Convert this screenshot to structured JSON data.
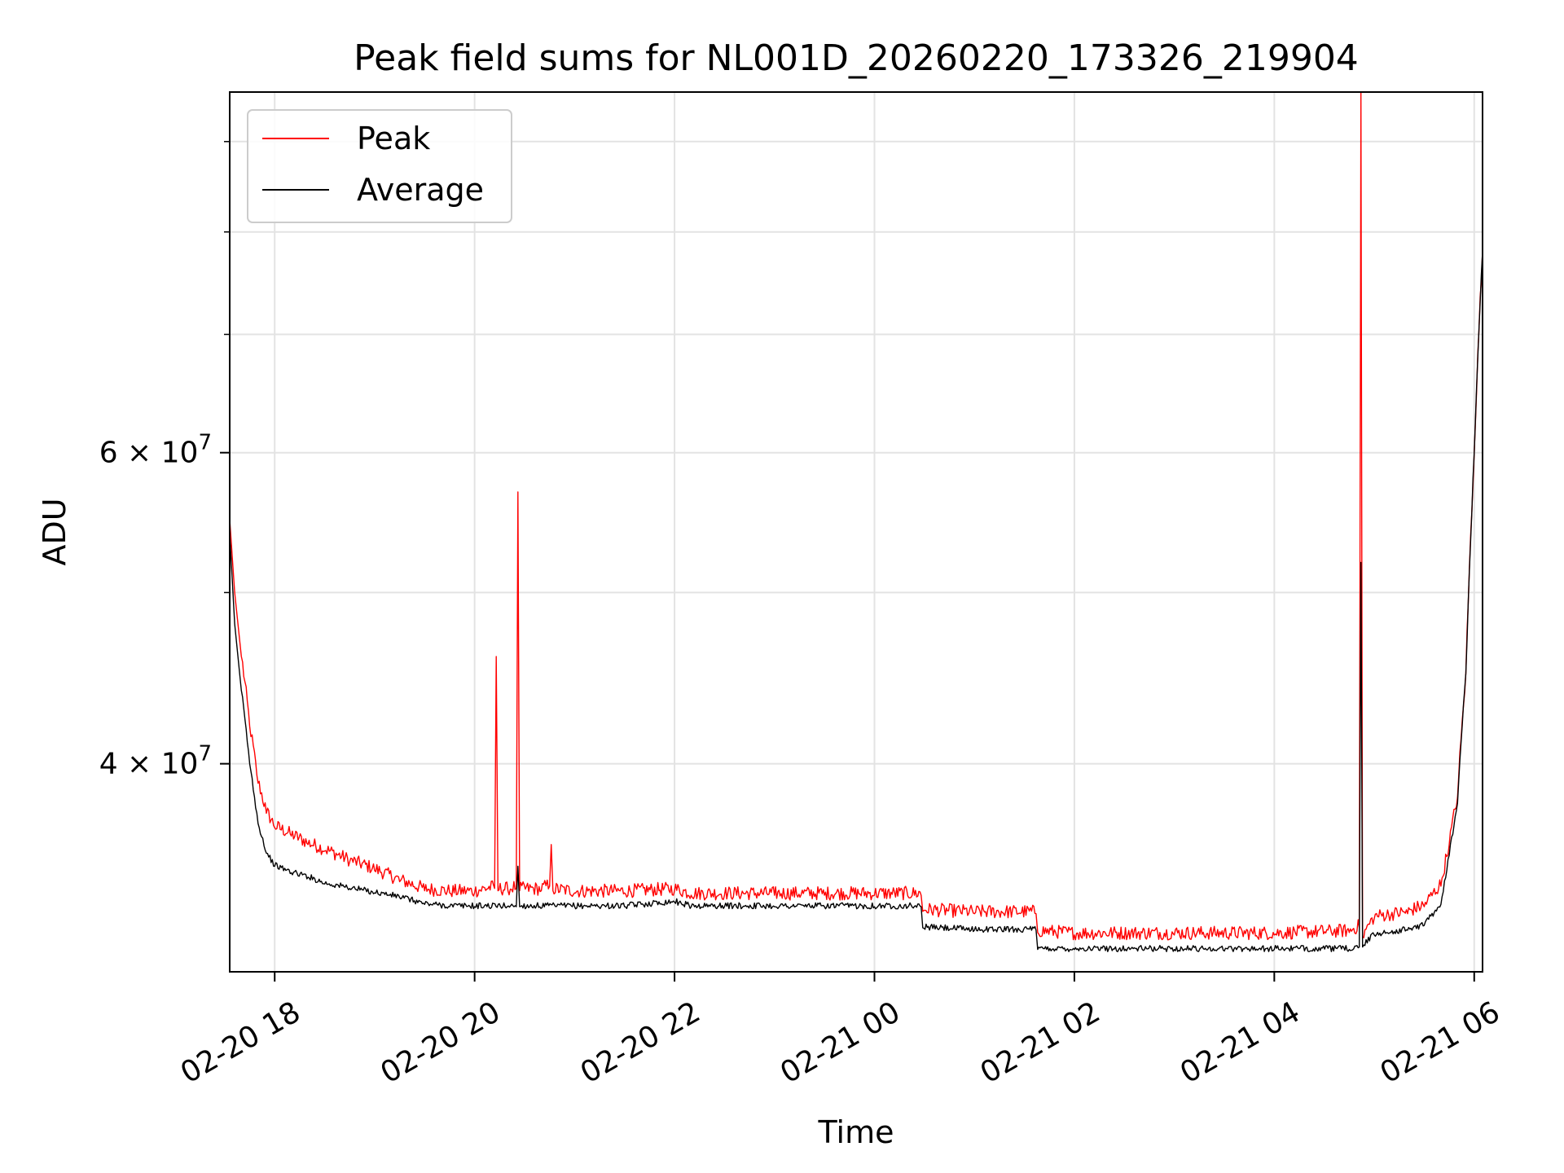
{
  "chart_data": {
    "type": "line",
    "title": "Peak field sums for NL001D_20260220_173326_219904",
    "xlabel": "Time",
    "ylabel": "ADU",
    "y_scale": "log",
    "ylim": [
      30500000,
      96000000
    ],
    "xlim": [
      "02-20 17:33",
      "02-21 06:05"
    ],
    "grid": true,
    "legend_position": "top-left",
    "x_ticks": [
      "02-20 18",
      "02-20 20",
      "02-20 22",
      "02-21 00",
      "02-21 02",
      "02-21 04",
      "02-21 06"
    ],
    "y_major_ticks": [
      {
        "value": 40000000,
        "label": "4 × 10",
        "exp": "7"
      },
      {
        "value": 60000000,
        "label": "6 × 10",
        "exp": "7"
      }
    ],
    "y_minor_ticks": [
      30000000,
      50000000,
      70000000,
      80000000,
      90000000
    ],
    "series": [
      {
        "name": "Peak",
        "color": "#ff0000",
        "x": [
          "02-20 17:33",
          "02-20 17:36",
          "02-20 17:40",
          "02-20 17:45",
          "02-20 17:50",
          "02-20 17:55",
          "02-20 18:00",
          "02-20 18:10",
          "02-20 18:20",
          "02-20 18:30",
          "02-20 18:45",
          "02-20 19:00",
          "02-20 19:15",
          "02-20 19:30",
          "02-20 19:45",
          "02-20 20:00",
          "02-20 20:12",
          "02-20 20:13",
          "02-20 20:14",
          "02-20 20:20",
          "02-20 20:25",
          "02-20 20:26",
          "02-20 20:27",
          "02-20 20:40",
          "02-20 20:45",
          "02-20 20:46",
          "02-20 20:47",
          "02-20 21:00",
          "02-20 21:30",
          "02-20 22:00",
          "02-20 22:10",
          "02-20 22:30",
          "02-20 23:00",
          "02-20 23:30",
          "02-21 00:00",
          "02-21 00:28",
          "02-21 00:29",
          "02-21 01:00",
          "02-21 01:37",
          "02-21 01:38",
          "02-21 02:00",
          "02-21 03:00",
          "02-21 04:00",
          "02-21 04:45",
          "02-21 04:51",
          "02-21 04:52",
          "02-21 04:53",
          "02-21 05:00",
          "02-21 05:10",
          "02-21 05:20",
          "02-21 05:30",
          "02-21 05:40",
          "02-21 05:45",
          "02-21 05:50",
          "02-21 05:55",
          "02-21 06:00",
          "02-21 06:05"
        ],
        "values": [
          55000000,
          50000000,
          46000000,
          42000000,
          39000000,
          37500000,
          36800000,
          36400000,
          36000000,
          35700000,
          35200000,
          34800000,
          34300000,
          33900000,
          33800000,
          33800000,
          34000000,
          46000000,
          33900000,
          33900000,
          34000000,
          57000000,
          33900000,
          33900000,
          34100000,
          36000000,
          33900000,
          33800000,
          33800000,
          33900000,
          33700000,
          33700000,
          33700000,
          33700000,
          33700000,
          33700000,
          33000000,
          32900000,
          32900000,
          32100000,
          32000000,
          32000000,
          32000000,
          32100000,
          32300000,
          96000000,
          31900000,
          32700000,
          32800000,
          32900000,
          33200000,
          34100000,
          36000000,
          38300000,
          45000000,
          60000000,
          78000000
        ]
      },
      {
        "name": "Average",
        "color": "#000000",
        "x": [
          "02-20 17:33",
          "02-20 17:36",
          "02-20 17:40",
          "02-20 17:45",
          "02-20 17:50",
          "02-20 17:55",
          "02-20 18:00",
          "02-20 18:10",
          "02-20 18:20",
          "02-20 18:30",
          "02-20 18:45",
          "02-20 19:00",
          "02-20 19:15",
          "02-20 19:30",
          "02-20 19:45",
          "02-20 20:00",
          "02-20 20:25",
          "02-20 20:26",
          "02-20 20:27",
          "02-20 21:00",
          "02-20 21:30",
          "02-20 22:00",
          "02-20 22:10",
          "02-20 22:30",
          "02-20 23:00",
          "02-20 23:30",
          "02-21 00:00",
          "02-21 00:28",
          "02-21 00:29",
          "02-21 01:00",
          "02-21 01:37",
          "02-21 01:38",
          "02-21 02:00",
          "02-21 03:00",
          "02-21 04:00",
          "02-21 04:45",
          "02-21 04:51",
          "02-21 04:52",
          "02-21 04:53",
          "02-21 05:00",
          "02-21 05:10",
          "02-21 05:20",
          "02-21 05:30",
          "02-21 05:40",
          "02-21 05:45",
          "02-21 05:50",
          "02-21 05:55",
          "02-21 06:00",
          "02-21 06:05"
        ],
        "values": [
          54000000,
          48000000,
          44000000,
          40000000,
          37000000,
          35600000,
          35000000,
          34700000,
          34500000,
          34200000,
          34000000,
          33800000,
          33600000,
          33300000,
          33200000,
          33200000,
          33200000,
          35000000,
          33200000,
          33200000,
          33200000,
          33400000,
          33200000,
          33200000,
          33200000,
          33200000,
          33200000,
          33200000,
          32300000,
          32200000,
          32200000,
          31400000,
          31400000,
          31400000,
          31400000,
          31400000,
          31500000,
          52000000,
          31500000,
          32000000,
          32100000,
          32200000,
          32400000,
          33300000,
          35500000,
          38000000,
          45000000,
          60000000,
          78000000
        ]
      }
    ]
  }
}
